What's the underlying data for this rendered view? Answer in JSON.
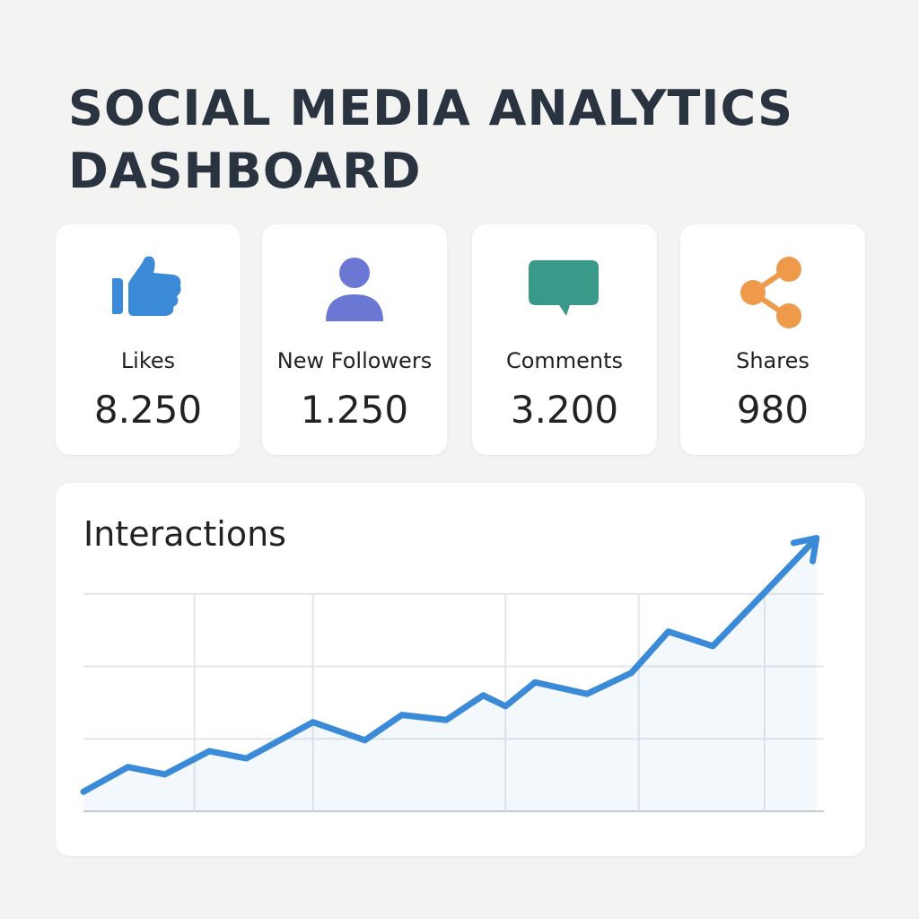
{
  "header": {
    "title": "SOCIAL MEDIA ANALYTICS DASHBOARD"
  },
  "cards": [
    {
      "label": "Likes",
      "value": "8.250"
    },
    {
      "label": "New Followers",
      "value": "1.250"
    },
    {
      "label": "Comments",
      "value": "3.200"
    },
    {
      "label": "Shares",
      "value": "980"
    }
  ],
  "chart_data": {
    "type": "line",
    "title": "Interactions",
    "color": "#3a8ad8",
    "x": [
      0,
      6,
      11,
      17,
      22,
      31,
      38,
      43,
      49,
      54,
      57,
      61,
      68,
      74,
      79,
      85,
      92,
      99
    ],
    "values": [
      27,
      61,
      51,
      83,
      73,
      123,
      98,
      133,
      126,
      160,
      145,
      178,
      162,
      191,
      248,
      228,
      302,
      377
    ],
    "xlim": [
      0,
      100
    ],
    "ylim": [
      0,
      400
    ],
    "xgrid": [
      15,
      31,
      57,
      75,
      92
    ],
    "ygrid": [
      0,
      100,
      200,
      300
    ]
  }
}
